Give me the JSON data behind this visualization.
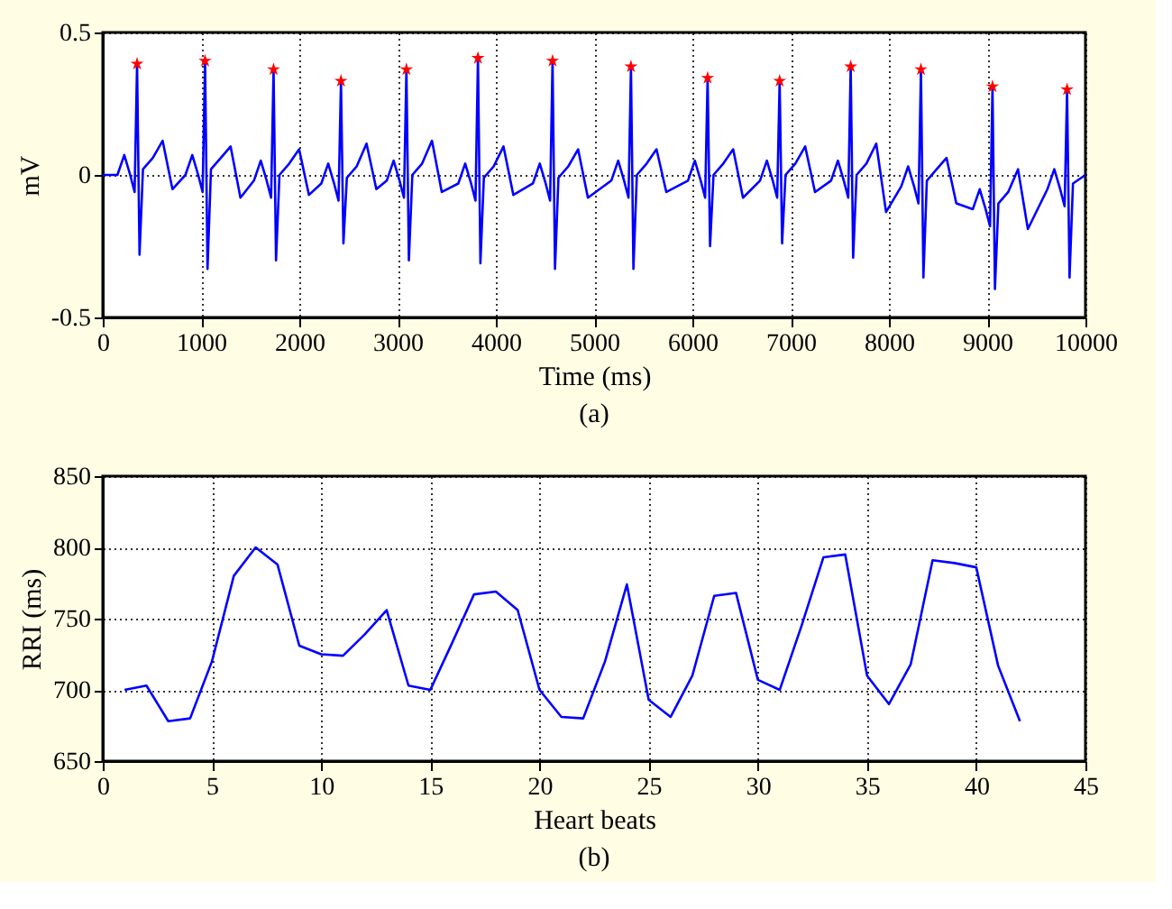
{
  "chart_data": [
    {
      "type": "line",
      "xlabel": "Time (ms)",
      "ylabel": "mV",
      "annotations": [
        "(a)"
      ],
      "xlim": [
        0,
        10000
      ],
      "xticks": [
        0,
        1000,
        2000,
        3000,
        4000,
        5000,
        6000,
        7000,
        8000,
        9000,
        10000
      ],
      "ylim": [
        -0.5,
        0.5
      ],
      "yticks": [
        -0.5,
        0,
        0.5
      ],
      "grid": true,
      "series": [
        {
          "color": "#0000ff",
          "line_style": "solid",
          "x": [
            0,
            149,
            219,
            279,
            324,
            349,
            374,
            409,
            509,
            609,
            709,
            841,
            911,
            971,
            1016,
            1041,
            1066,
            1101,
            1201,
            1301,
            1401,
            1538,
            1608,
            1668,
            1713,
            1738,
            1763,
            1798,
            1898,
            1998,
            2098,
            2224,
            2294,
            2354,
            2399,
            2424,
            2449,
            2484,
            2584,
            2684,
            2784,
            2890,
            2960,
            3020,
            3065,
            3090,
            3115,
            3150,
            3250,
            3350,
            3450,
            3618,
            3688,
            3748,
            3793,
            3818,
            3843,
            3878,
            3978,
            4078,
            4178,
            4377,
            4447,
            4507,
            4552,
            4577,
            4602,
            4637,
            4737,
            4837,
            4937,
            5175,
            5245,
            5305,
            5350,
            5375,
            5400,
            5435,
            5535,
            5635,
            5735,
            5955,
            6025,
            6085,
            6130,
            6155,
            6180,
            6215,
            6315,
            6415,
            6515,
            6688,
            6758,
            6818,
            6863,
            6888,
            6913,
            6948,
            7048,
            7148,
            7248,
            7411,
            7481,
            7541,
            7586,
            7611,
            7636,
            7671,
            7771,
            7871,
            7971,
            8126,
            8196,
            8256,
            8301,
            8326,
            8351,
            8386,
            8486,
            8586,
            8686,
            8854,
            8924,
            8984,
            9029,
            9054,
            9079,
            9114,
            9214,
            9314,
            9414,
            9613,
            9683,
            9743,
            9788,
            9813,
            9838,
            9873,
            10000
          ],
          "values": [
            0.0,
            0.0,
            0.07,
            0.0,
            -0.06,
            0.39,
            -0.28,
            0.02,
            0.06,
            0.12,
            -0.05,
            0.0,
            0.07,
            0.0,
            -0.06,
            0.4,
            -0.33,
            0.02,
            0.06,
            0.1,
            -0.08,
            -0.02,
            0.05,
            -0.02,
            -0.08,
            0.37,
            -0.3,
            0.0,
            0.04,
            0.09,
            -0.07,
            -0.03,
            0.04,
            -0.03,
            -0.09,
            0.33,
            -0.24,
            -0.01,
            0.03,
            0.11,
            -0.05,
            -0.02,
            0.05,
            -0.02,
            -0.08,
            0.37,
            -0.3,
            0.0,
            0.04,
            0.12,
            -0.06,
            -0.03,
            0.04,
            -0.03,
            -0.09,
            0.41,
            -0.31,
            -0.01,
            0.03,
            0.1,
            -0.07,
            -0.03,
            0.04,
            -0.03,
            -0.09,
            0.4,
            -0.33,
            -0.01,
            0.03,
            0.09,
            -0.08,
            -0.02,
            0.05,
            -0.02,
            -0.08,
            0.38,
            -0.33,
            0.0,
            0.04,
            0.09,
            -0.06,
            -0.02,
            0.05,
            -0.02,
            -0.08,
            0.34,
            -0.25,
            0.0,
            0.04,
            0.09,
            -0.08,
            -0.02,
            0.05,
            -0.02,
            -0.08,
            0.33,
            -0.24,
            0.0,
            0.04,
            0.1,
            -0.06,
            -0.02,
            0.05,
            -0.02,
            -0.08,
            0.38,
            -0.29,
            0.0,
            0.04,
            0.11,
            -0.13,
            -0.04,
            0.03,
            -0.04,
            -0.1,
            0.37,
            -0.36,
            -0.02,
            0.02,
            0.06,
            -0.1,
            -0.12,
            -0.05,
            -0.12,
            -0.18,
            0.31,
            -0.4,
            -0.1,
            -0.06,
            0.02,
            -0.19,
            -0.05,
            0.02,
            -0.05,
            -0.11,
            0.3,
            -0.36,
            -0.03,
            0.0
          ]
        },
        {
          "type": "scatter",
          "color": "#ff0000",
          "marker": "star",
          "x": [
            349,
            1041,
            1738,
            2424,
            3090,
            3818,
            4577,
            5375,
            6155,
            6888,
            7611,
            8326,
            9054,
            9813
          ],
          "values": [
            0.39,
            0.4,
            0.37,
            0.33,
            0.37,
            0.41,
            0.4,
            0.38,
            0.34,
            0.33,
            0.38,
            0.37,
            0.31,
            0.3
          ]
        }
      ]
    },
    {
      "type": "line",
      "xlabel": "Heart beats",
      "ylabel": "RRI (ms)",
      "annotations": [
        "(b)"
      ],
      "xlim": [
        0,
        45
      ],
      "xticks": [
        0,
        5,
        10,
        15,
        20,
        25,
        30,
        35,
        40,
        45
      ],
      "ylim": [
        650,
        850
      ],
      "yticks": [
        650,
        700,
        750,
        800,
        850
      ],
      "grid": true,
      "series": [
        {
          "color": "#0000ff",
          "line_style": "solid",
          "x": [
            1,
            2,
            3,
            4,
            5,
            6,
            7,
            8,
            9,
            10,
            11,
            12,
            13,
            14,
            15,
            16,
            17,
            18,
            19,
            20,
            21,
            22,
            23,
            24,
            25,
            26,
            27,
            28,
            29,
            30,
            31,
            32,
            33,
            34,
            35,
            36,
            37,
            38,
            39,
            40,
            41,
            42
          ],
          "values": [
            700,
            703,
            678,
            680,
            720,
            780,
            800,
            788,
            731,
            725,
            724,
            739,
            756,
            703,
            700,
            733,
            767,
            769,
            756,
            700,
            681,
            680,
            720,
            774,
            693,
            681,
            710,
            766,
            768,
            707,
            700,
            745,
            793,
            795,
            710,
            690,
            718,
            791,
            789,
            786,
            717,
            678
          ]
        }
      ]
    }
  ]
}
